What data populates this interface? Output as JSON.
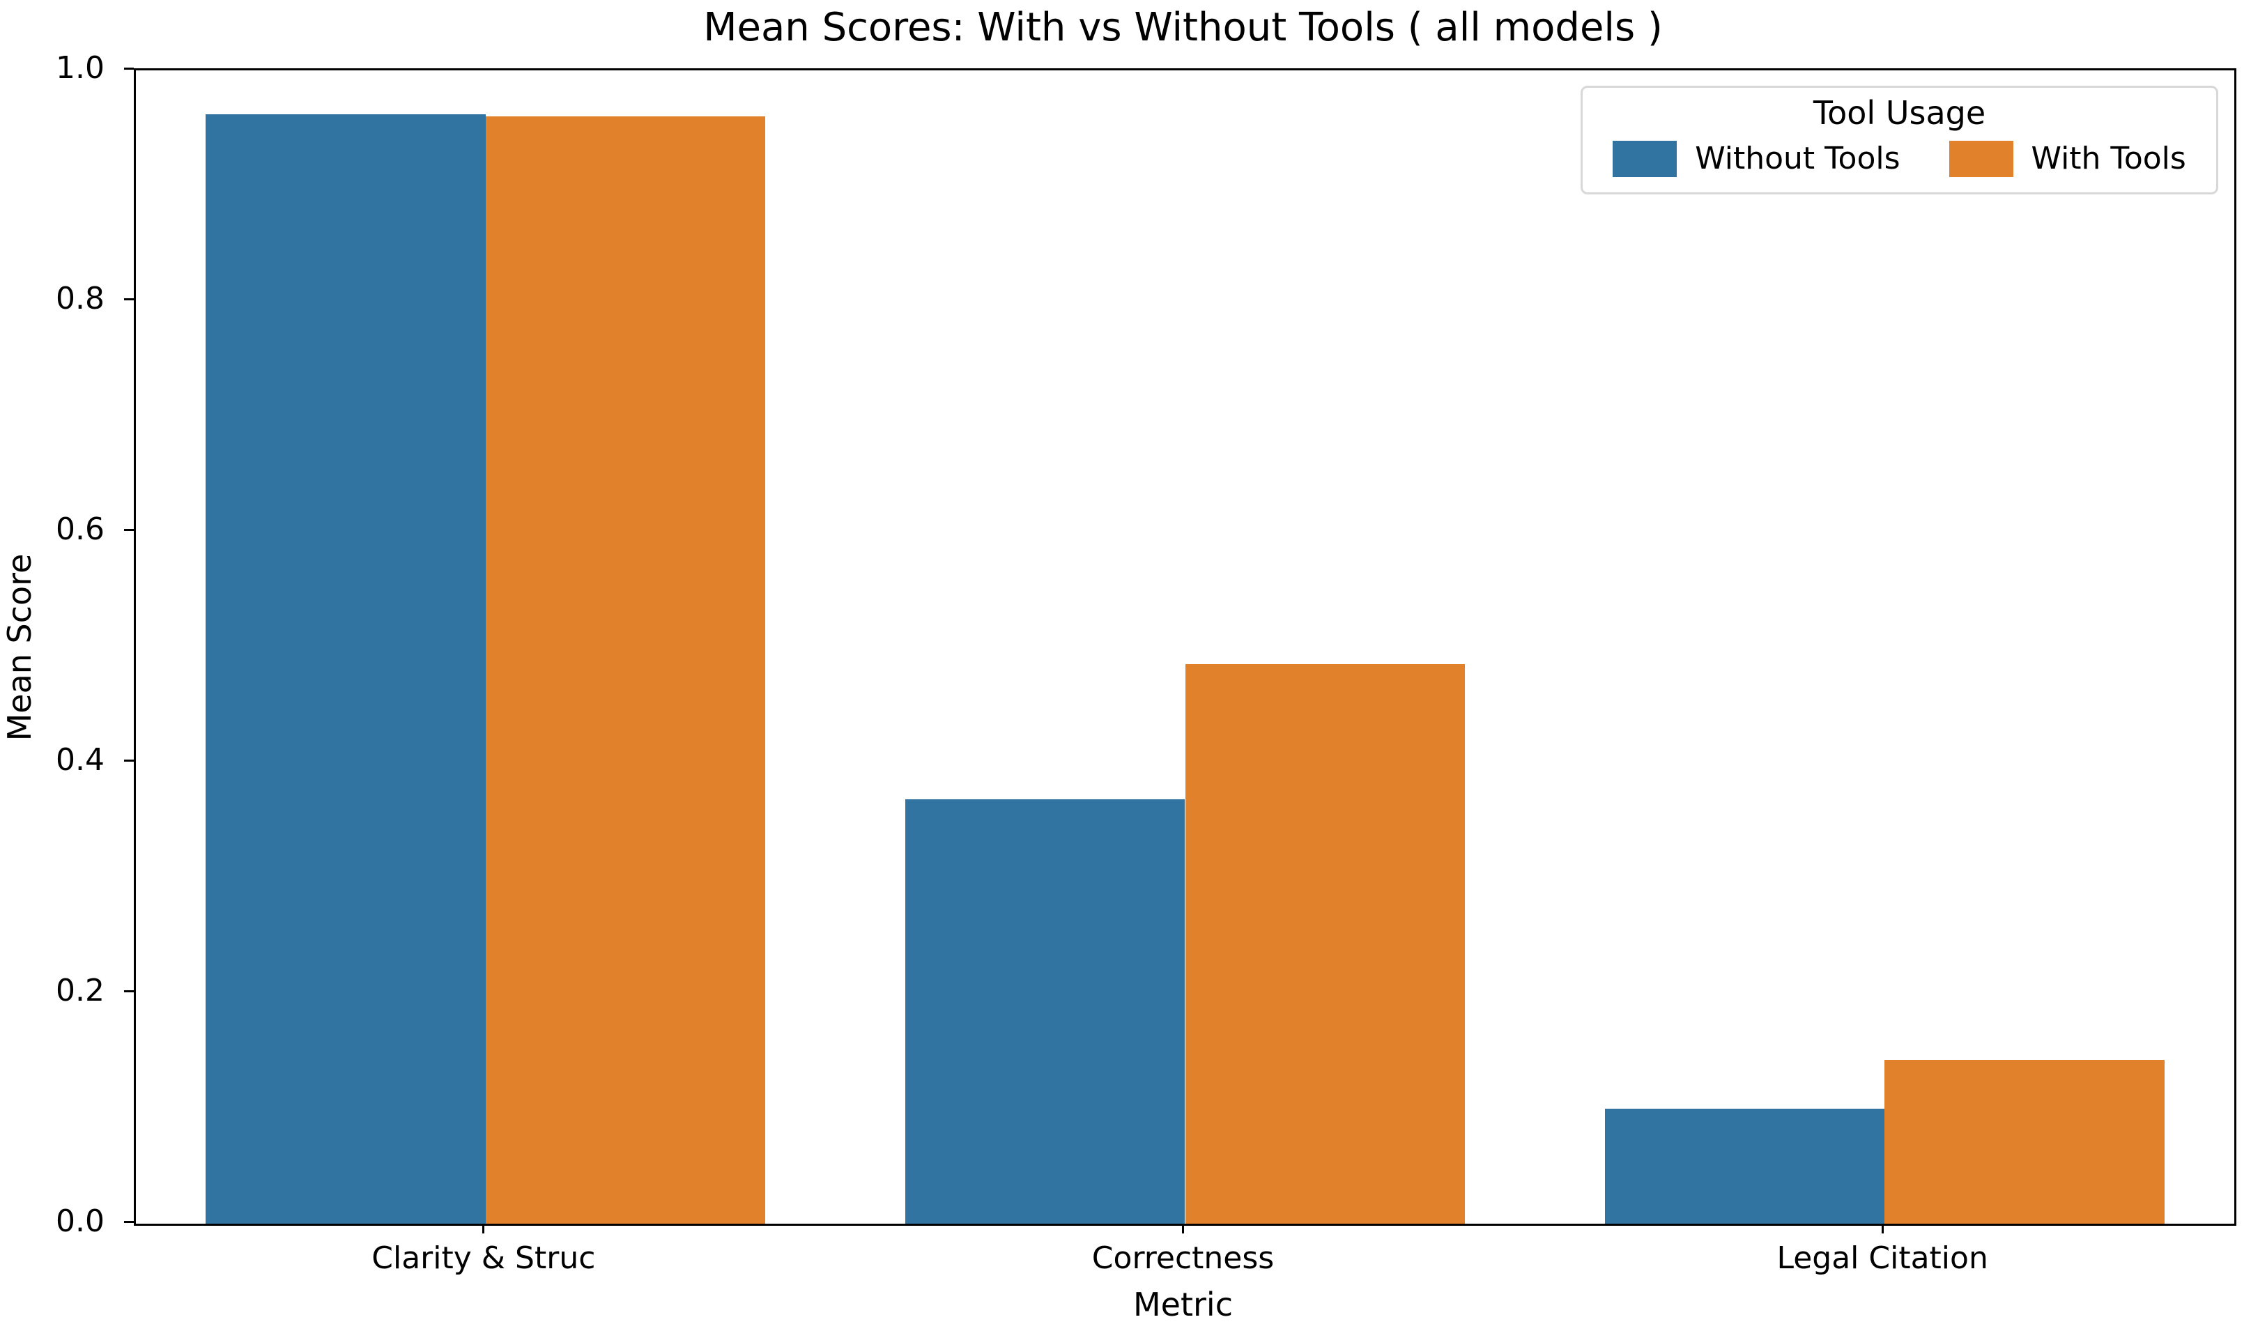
{
  "chart_data": {
    "type": "bar",
    "title": "Mean Scores: With vs Without Tools ( all models )",
    "xlabel": "Metric",
    "ylabel": "Mean Score",
    "categories": [
      "Clarity & Struc",
      "Correctness",
      "Legal Citation"
    ],
    "series": [
      {
        "name": "Without Tools",
        "color": "#3274a1",
        "values": [
          0.962,
          0.368,
          0.1
        ]
      },
      {
        "name": "With Tools",
        "color": "#e1812c",
        "values": [
          0.96,
          0.485,
          0.142
        ]
      }
    ],
    "ylim": [
      0.0,
      1.0
    ],
    "yticks": [
      "0.0",
      "0.2",
      "0.4",
      "0.6",
      "0.8",
      "1.0"
    ],
    "grid": false,
    "legend": {
      "title": "Tool Usage",
      "position": "upper right"
    },
    "layout": {
      "bar_group_width_fraction": 0.8,
      "axis_color": "#000000",
      "background_color": "#ffffff"
    }
  }
}
